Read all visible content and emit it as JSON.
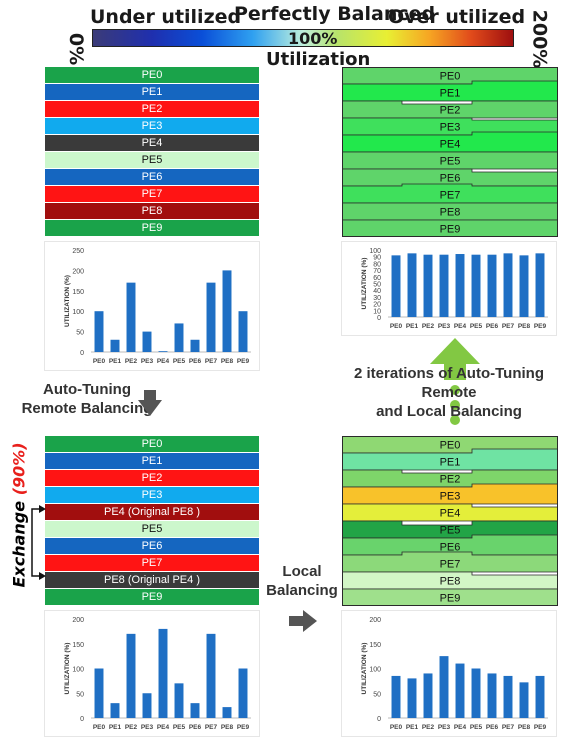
{
  "colorbar": {
    "left_label": "Under utilized",
    "center_label": "Perfectly Balanced",
    "right_label": "Over utilized",
    "min_label": "0%",
    "mid_label": "100%",
    "max_label": "200%",
    "axis_title": "Utilization"
  },
  "stacks": {
    "initial": [
      {
        "label": "PE0",
        "color": "#1aa34a"
      },
      {
        "label": "PE1",
        "color": "#1566c0"
      },
      {
        "label": "PE2",
        "color": "#ff1414"
      },
      {
        "label": "PE3",
        "color": "#11aaee"
      },
      {
        "label": "PE4",
        "color": "#3a3a3a"
      },
      {
        "label": "PE5",
        "color": "#ccf7cc",
        "dark": true
      },
      {
        "label": "PE6",
        "color": "#1566c0"
      },
      {
        "label": "PE7",
        "color": "#ff1414"
      },
      {
        "label": "PE8",
        "color": "#a10e0e"
      },
      {
        "label": "PE9",
        "color": "#1aa34a"
      }
    ],
    "after_remote": [
      {
        "label": "PE0",
        "color": "#1aa34a"
      },
      {
        "label": "PE1",
        "color": "#1566c0"
      },
      {
        "label": "PE2",
        "color": "#ff1414"
      },
      {
        "label": "PE3",
        "color": "#11aaee"
      },
      {
        "label": "PE4 (Original PE8 )",
        "color": "#a10e0e"
      },
      {
        "label": "PE5",
        "color": "#ccf7cc",
        "dark": true
      },
      {
        "label": "PE6",
        "color": "#1566c0"
      },
      {
        "label": "PE7",
        "color": "#ff1414"
      },
      {
        "label": "PE8 (Original PE4 )",
        "color": "#3a3a3a"
      },
      {
        "label": "PE9",
        "color": "#1aa34a"
      }
    ],
    "after_local": [
      {
        "label": "PE0",
        "color": "#8fd873"
      },
      {
        "label": "PE1",
        "color": "#6fe3a3"
      },
      {
        "label": "PE2",
        "color": "#7ed56a"
      },
      {
        "label": "PE3",
        "color": "#f8c22a"
      },
      {
        "label": "PE4",
        "color": "#e4ee3a"
      },
      {
        "label": "PE5",
        "color": "#22a446"
      },
      {
        "label": "PE6",
        "color": "#69d36c"
      },
      {
        "label": "PE7",
        "color": "#8cd97a"
      },
      {
        "label": "PE8",
        "color": "#d2f6c6"
      },
      {
        "label": "PE9",
        "color": "#9fe08c"
      }
    ],
    "final": [
      {
        "label": "PE0",
        "color": "#5fd46a"
      },
      {
        "label": "PE1",
        "color": "#22e84c"
      },
      {
        "label": "PE2",
        "color": "#5fd46a"
      },
      {
        "label": "PE3",
        "color": "#3fe05c"
      },
      {
        "label": "PE4",
        "color": "#22e84c"
      },
      {
        "label": "PE5",
        "color": "#5fd46a"
      },
      {
        "label": "PE6",
        "color": "#5fd46a"
      },
      {
        "label": "PE7",
        "color": "#3fe05c"
      },
      {
        "label": "PE8",
        "color": "#5fd46a"
      },
      {
        "label": "PE9",
        "color": "#5fd46a"
      }
    ]
  },
  "labels": {
    "remote": [
      "Auto-Tuning",
      "Remote Balancing"
    ],
    "local": [
      "Local",
      "Balancing"
    ],
    "iterations": [
      "2 iterations of Auto-Tuning Remote",
      "and Local Balancing"
    ],
    "exchange_word": "Exchange",
    "exchange_pct": "(90%)"
  },
  "chart_data": [
    {
      "type": "bar",
      "categories": [
        "PE0",
        "PE1",
        "PE2",
        "PE3",
        "PE4",
        "PE5",
        "PE6",
        "PE7",
        "PE8",
        "PE9"
      ],
      "values": [
        100,
        30,
        170,
        50,
        2,
        70,
        30,
        170,
        200,
        100
      ],
      "ylabel": "UTILIZATION (%)",
      "ylim": [
        0,
        250
      ],
      "yticks": [
        0,
        50,
        100,
        150,
        200,
        250
      ],
      "color": "#1f6fc4"
    },
    {
      "type": "bar",
      "categories": [
        "PE0",
        "PE1",
        "PE2",
        "PE3",
        "PE4",
        "PE5",
        "PE6",
        "PE7",
        "PE8",
        "PE9"
      ],
      "values": [
        92,
        95,
        93,
        93,
        94,
        93,
        93,
        95,
        92,
        95
      ],
      "ylabel": "UTILIZATION (%)",
      "ylim": [
        0,
        100
      ],
      "yticks": [
        0,
        10,
        20,
        30,
        40,
        50,
        60,
        70,
        80,
        90,
        100
      ],
      "color": "#1f6fc4"
    },
    {
      "type": "bar",
      "categories": [
        "PE0",
        "PE1",
        "PE2",
        "PE3",
        "PE4",
        "PE5",
        "PE6",
        "PE7",
        "PE8",
        "PE9"
      ],
      "values": [
        100,
        30,
        170,
        50,
        180,
        70,
        30,
        170,
        22,
        100
      ],
      "ylabel": "UTILIZATION (%)",
      "ylim": [
        0,
        200
      ],
      "yticks": [
        0,
        50,
        100,
        150,
        200
      ],
      "color": "#1f6fc4"
    },
    {
      "type": "bar",
      "categories": [
        "PE0",
        "PE1",
        "PE2",
        "PE3",
        "PE4",
        "PE5",
        "PE6",
        "PE7",
        "PE8",
        "PE9"
      ],
      "values": [
        85,
        80,
        90,
        125,
        110,
        100,
        90,
        85,
        72,
        85
      ],
      "ylabel": "UTILIZATION (%)",
      "ylim": [
        0,
        200
      ],
      "yticks": [
        0,
        50,
        100,
        150,
        200
      ],
      "color": "#1f6fc4"
    }
  ]
}
